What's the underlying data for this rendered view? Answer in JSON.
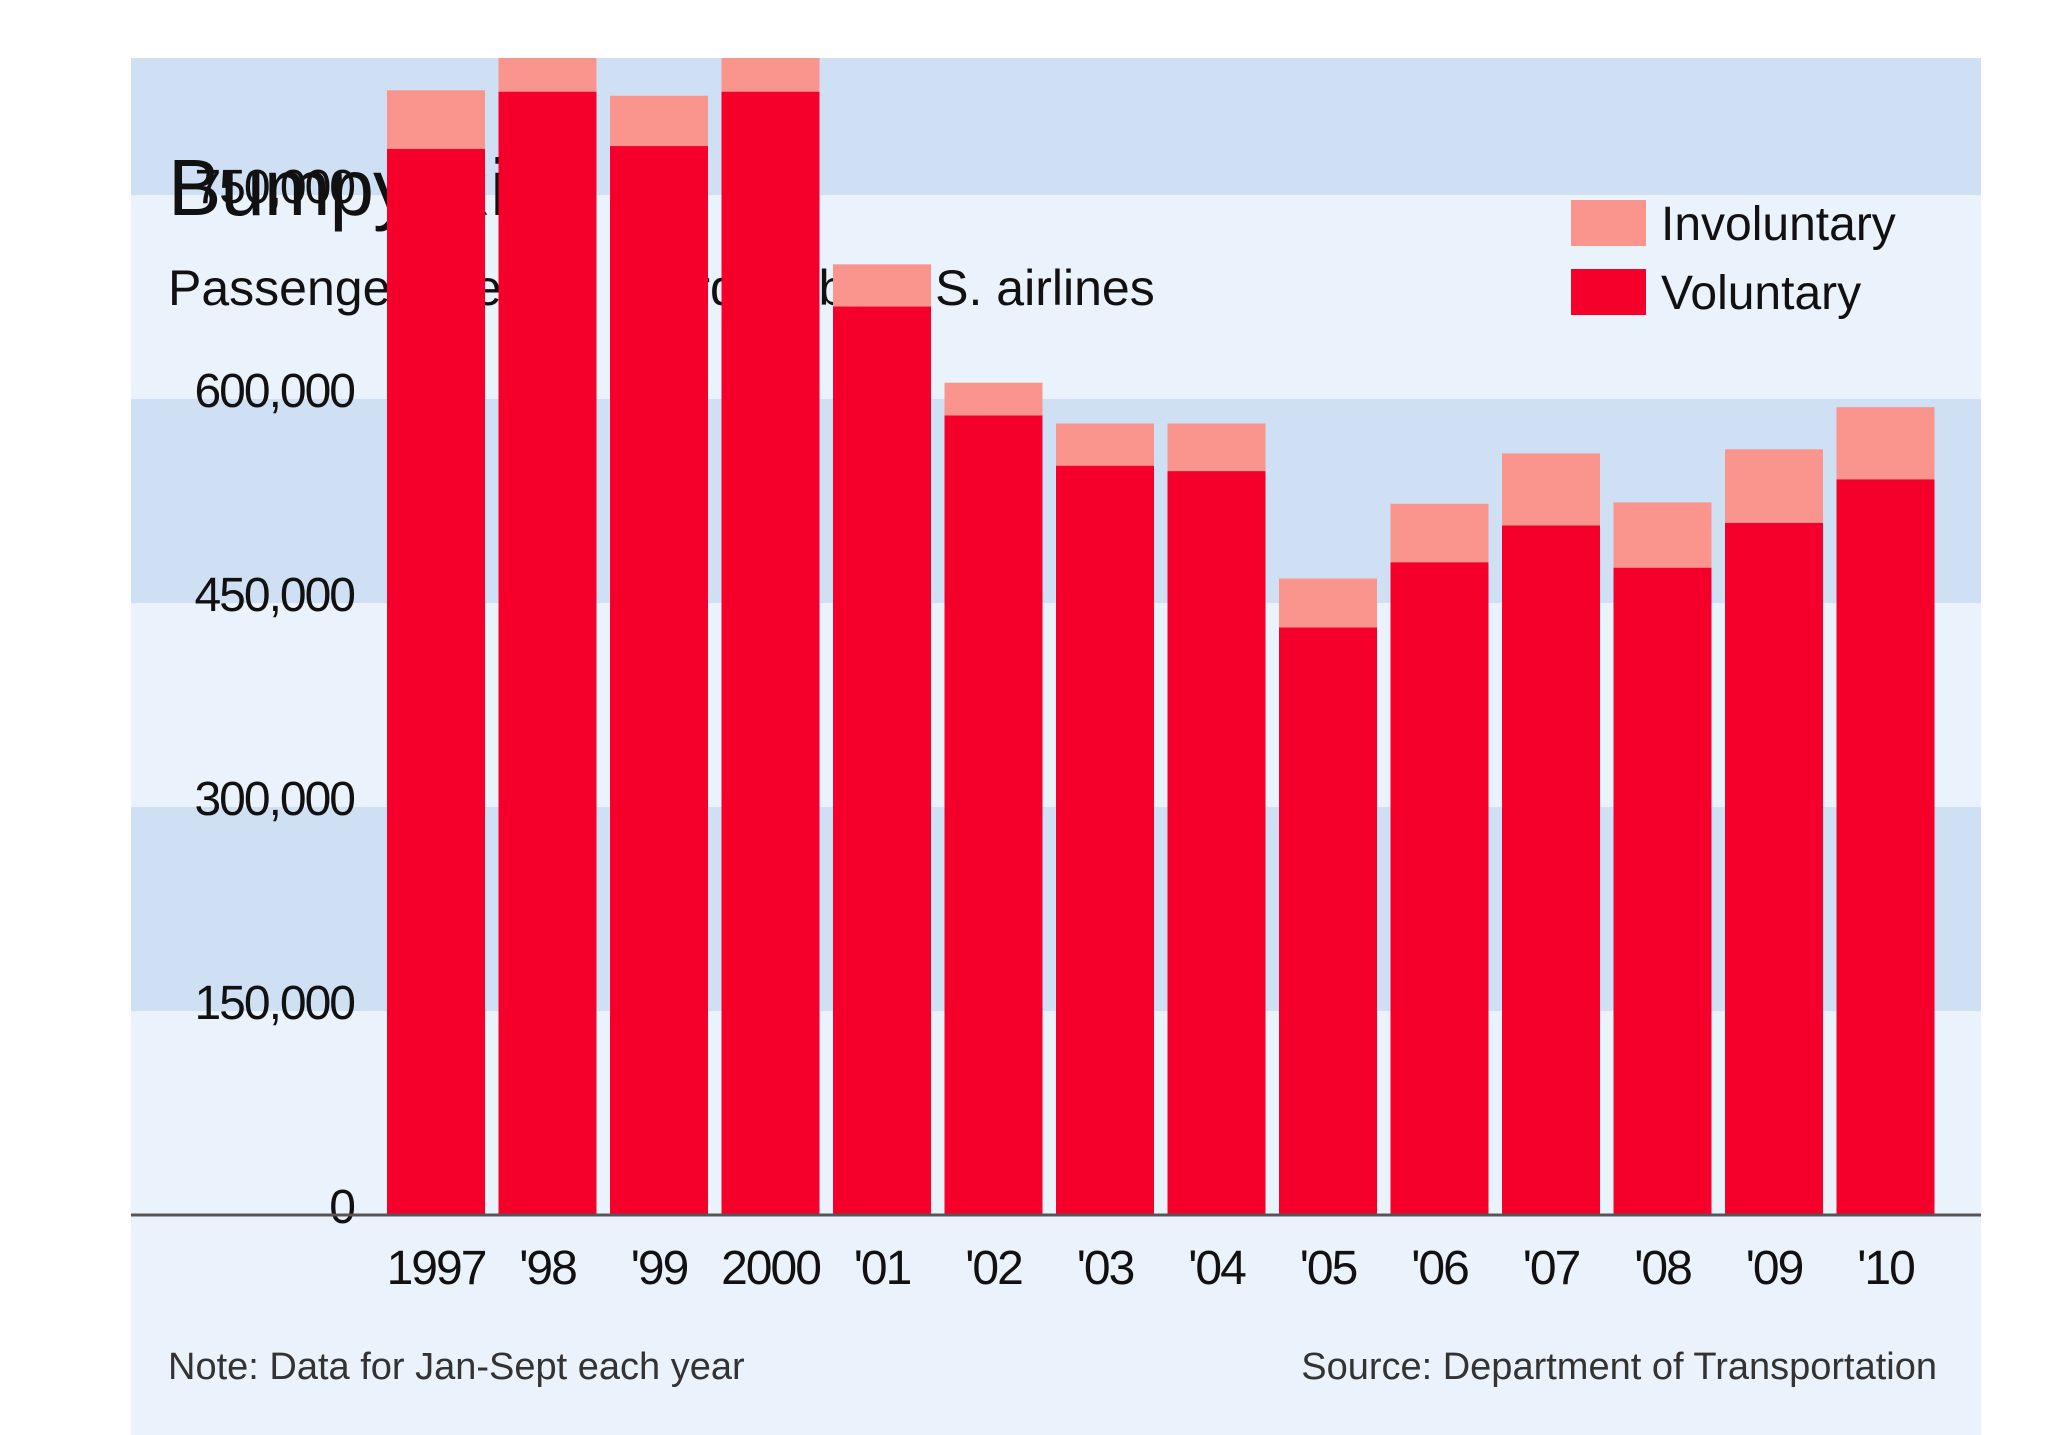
{
  "chart_data": {
    "type": "bar",
    "stacked": true,
    "title": "Bumpy Ride",
    "subtitle": "Passengers denied boarding by U.S. airlines",
    "categories": [
      "1997",
      "'98",
      "'99",
      "2000",
      "'01",
      "'02",
      "'03",
      "'04",
      "'05",
      "'06",
      "'07",
      "'08",
      "'09",
      "'10"
    ],
    "series": [
      {
        "name": "Voluntary",
        "color": "#f5002a",
        "values": [
          784000,
          826000,
          786000,
          826000,
          668000,
          588000,
          551000,
          547000,
          432000,
          480000,
          507000,
          476000,
          509000,
          541000
        ]
      },
      {
        "name": "Involuntary",
        "color": "#f9958c",
        "values": [
          43000,
          31000,
          37000,
          44000,
          31000,
          24000,
          31000,
          35000,
          36000,
          43000,
          53000,
          48000,
          54000,
          53000
        ]
      }
    ],
    "yticks": [
      "0",
      "150,000",
      "300,000",
      "450,000",
      "600,000",
      "750,000"
    ],
    "ytick_values": [
      0,
      150000,
      300000,
      450000,
      600000,
      750000
    ],
    "ylim": [
      0,
      900000
    ],
    "grid": "alternating bands",
    "legend": "top-right",
    "note": "Note: Data for Jan-Sept each year",
    "source": "Source: Department of Transportation"
  },
  "colors": {
    "panel_background": "#eaf2fc",
    "band": "#cfe0f5",
    "axis_line": "#555555"
  }
}
